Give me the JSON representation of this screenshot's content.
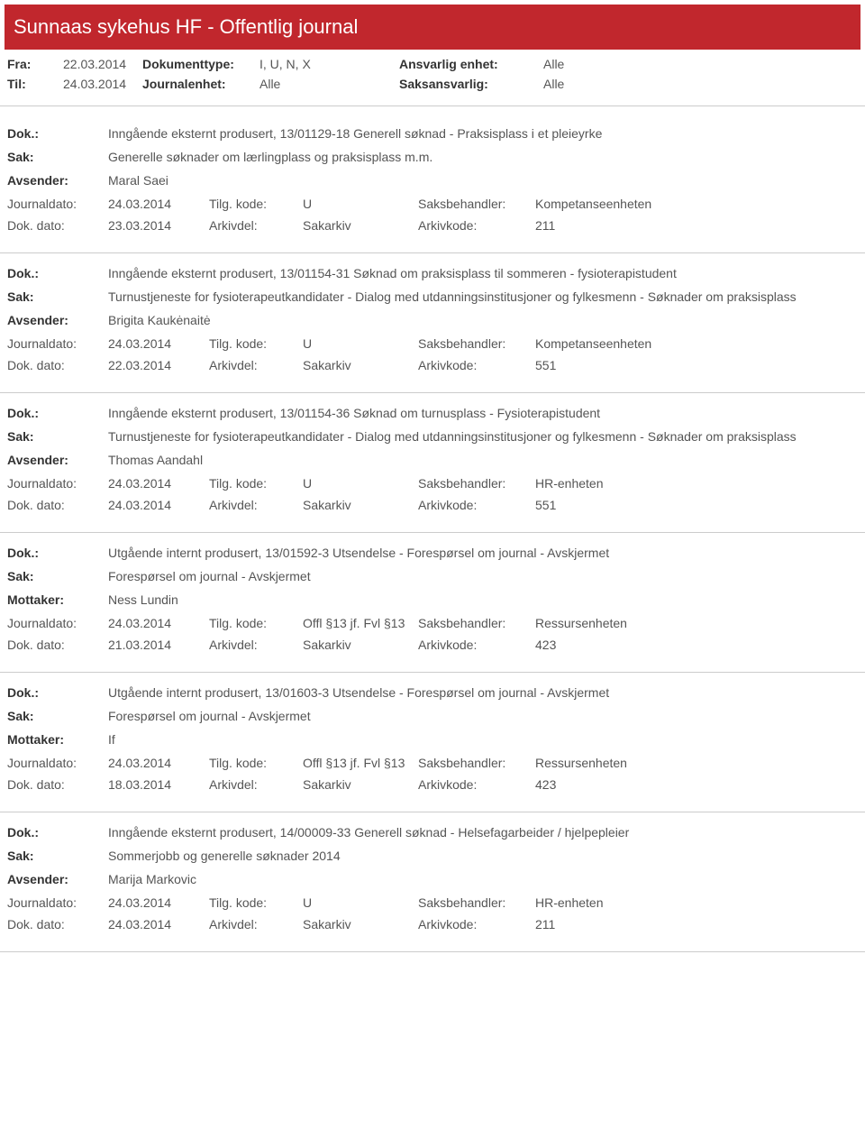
{
  "header": {
    "title": "Sunnaas sykehus HF - Offentlig journal"
  },
  "filters": {
    "fra_label": "Fra:",
    "fra": "22.03.2014",
    "til_label": "Til:",
    "til": "24.03.2014",
    "doktype_label": "Dokumenttype:",
    "doktype": "I, U, N, X",
    "journalenhet_label": "Journalenhet:",
    "journalenhet": "Alle",
    "ansvarlig_label": "Ansvarlig enhet:",
    "ansvarlig": "Alle",
    "saksansvarlig_label": "Saksansvarlig:",
    "saksansvarlig": "Alle"
  },
  "labels": {
    "dok": "Dok.:",
    "sak": "Sak:",
    "avsender": "Avsender:",
    "mottaker": "Mottaker:",
    "journaldato": "Journaldato:",
    "tilgkode": "Tilg. kode:",
    "saksbehandler": "Saksbehandler:",
    "dokdato": "Dok. dato:",
    "arkivdel": "Arkivdel:",
    "arkivkode": "Arkivkode:"
  },
  "entries": [
    {
      "dok": "Inngående eksternt produsert, 13/01129-18 Generell søknad - Praksisplass i et pleieyrke",
      "sak": "Generelle søknader om lærlingplass og praksisplass m.m.",
      "party_label": "Avsender:",
      "party": "Maral Saei",
      "journaldato": "24.03.2014",
      "tilgkode": "U",
      "saksbehandler": "Kompetanseenheten",
      "dokdato": "23.03.2014",
      "arkivdel": "Sakarkiv",
      "arkivkode": "211"
    },
    {
      "dok": "Inngående eksternt produsert, 13/01154-31 Søknad om praksisplass til sommeren - fysioterapistudent",
      "sak": "Turnustjeneste for fysioterapeutkandidater - Dialog med utdanningsinstitusjoner og fylkesmenn - Søknader om praksisplass",
      "party_label": "Avsender:",
      "party": "Brigita Kaukėnaitė",
      "journaldato": "24.03.2014",
      "tilgkode": "U",
      "saksbehandler": "Kompetanseenheten",
      "dokdato": "22.03.2014",
      "arkivdel": "Sakarkiv",
      "arkivkode": "551"
    },
    {
      "dok": "Inngående eksternt produsert, 13/01154-36 Søknad om turnusplass - Fysioterapistudent",
      "sak": "Turnustjeneste for fysioterapeutkandidater - Dialog med utdanningsinstitusjoner og fylkesmenn - Søknader om praksisplass",
      "party_label": "Avsender:",
      "party": "Thomas Aandahl",
      "journaldato": "24.03.2014",
      "tilgkode": "U",
      "saksbehandler": "HR-enheten",
      "dokdato": "24.03.2014",
      "arkivdel": "Sakarkiv",
      "arkivkode": "551"
    },
    {
      "dok": "Utgående internt produsert, 13/01592-3 Utsendelse - Forespørsel om journal - Avskjermet",
      "sak": "Forespørsel om journal - Avskjermet",
      "party_label": "Mottaker:",
      "party": "Ness Lundin",
      "journaldato": "24.03.2014",
      "tilgkode": "Offl §13 jf. Fvl §13",
      "saksbehandler": "Ressursenheten",
      "dokdato": "21.03.2014",
      "arkivdel": "Sakarkiv",
      "arkivkode": "423"
    },
    {
      "dok": "Utgående internt produsert, 13/01603-3 Utsendelse - Forespørsel om journal - Avskjermet",
      "sak": "Forespørsel om journal - Avskjermet",
      "party_label": "Mottaker:",
      "party": "If",
      "journaldato": "24.03.2014",
      "tilgkode": "Offl §13 jf. Fvl §13",
      "saksbehandler": "Ressursenheten",
      "dokdato": "18.03.2014",
      "arkivdel": "Sakarkiv",
      "arkivkode": "423"
    },
    {
      "dok": "Inngående eksternt produsert, 14/00009-33 Generell søknad - Helsefagarbeider / hjelpepleier",
      "sak": "Sommerjobb og generelle søknader 2014",
      "party_label": "Avsender:",
      "party": "Marija Markovic",
      "journaldato": "24.03.2014",
      "tilgkode": "U",
      "saksbehandler": "HR-enheten",
      "dokdato": "24.03.2014",
      "arkivdel": "Sakarkiv",
      "arkivkode": "211"
    }
  ]
}
